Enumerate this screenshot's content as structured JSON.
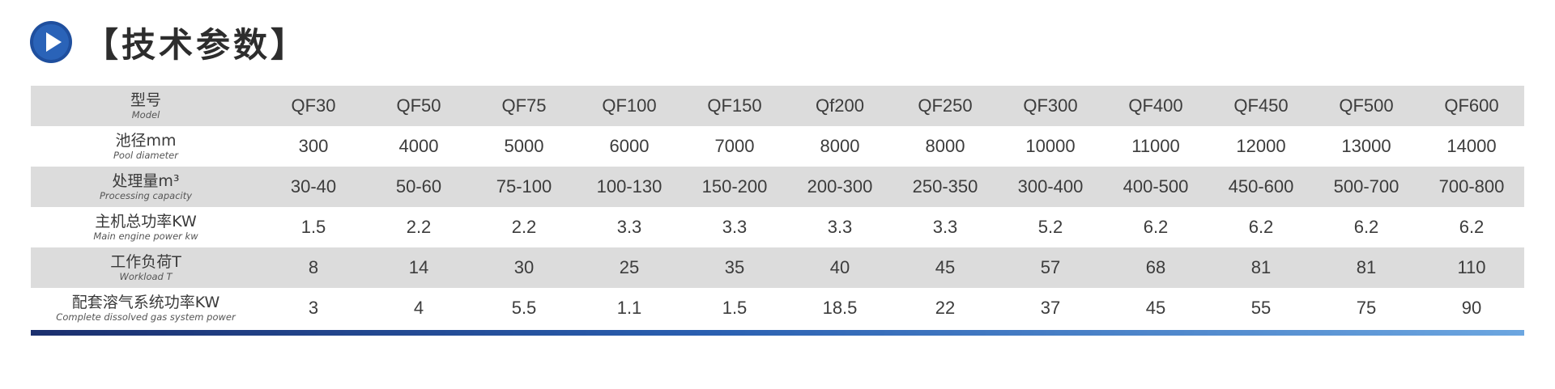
{
  "header": {
    "title": "【技术参数】",
    "icon": "play-circle-icon",
    "icon_color": "#1f4f9e"
  },
  "table": {
    "rows": [
      {
        "label_cn": "型号",
        "label_en": "Model",
        "values": [
          "QF30",
          "QF50",
          "QF75",
          "QF100",
          "QF150",
          "Qf200",
          "QF250",
          "QF300",
          "QF400",
          "QF450",
          "QF500",
          "QF600"
        ]
      },
      {
        "label_cn": "池径mm",
        "label_en": "Pool diameter",
        "values": [
          "300",
          "4000",
          "5000",
          "6000",
          "7000",
          "8000",
          "8000",
          "10000",
          "11000",
          "12000",
          "13000",
          "14000"
        ]
      },
      {
        "label_cn": "处理量m³",
        "label_en": "Processing capacity",
        "values": [
          "30-40",
          "50-60",
          "75-100",
          "100-130",
          "150-200",
          "200-300",
          "250-350",
          "300-400",
          "400-500",
          "450-600",
          "500-700",
          "700-800"
        ]
      },
      {
        "label_cn": "主机总功率KW",
        "label_en": "Main engine power kw",
        "values": [
          "1.5",
          "2.2",
          "2.2",
          "3.3",
          "3.3",
          "3.3",
          "3.3",
          "5.2",
          "6.2",
          "6.2",
          "6.2",
          "6.2"
        ]
      },
      {
        "label_cn": "工作负荷T",
        "label_en": "Workload T",
        "values": [
          "8",
          "14",
          "30",
          "25",
          "35",
          "40",
          "45",
          "57",
          "68",
          "81",
          "81",
          "110"
        ]
      },
      {
        "label_cn": "配套溶气系统功率KW",
        "label_en": "Complete dissolved gas system power",
        "values": [
          "3",
          "4",
          "5.5",
          "1.1",
          "1.5",
          "18.5",
          "22",
          "37",
          "45",
          "55",
          "75",
          "90"
        ]
      }
    ]
  },
  "colors": {
    "row_shade": "#dcdcdc",
    "rule_start": "#1b2f6e",
    "rule_end": "#6ca6e0"
  }
}
